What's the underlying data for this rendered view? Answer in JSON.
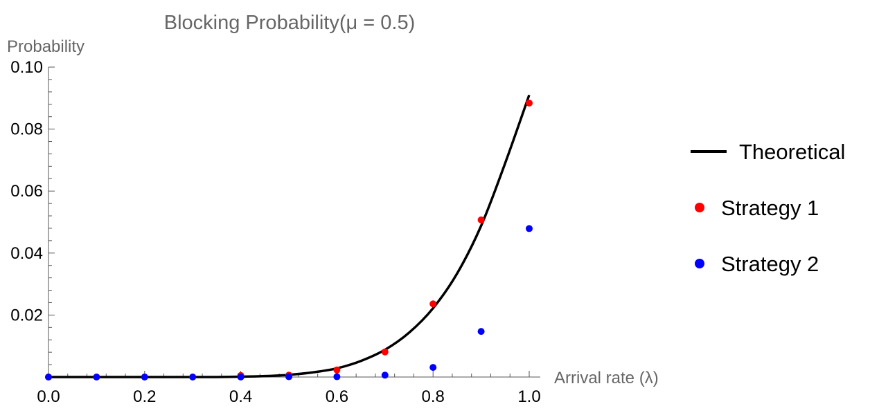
{
  "chart_data": {
    "type": "scatter",
    "title": "Blocking Probability(μ  = 0.5)",
    "xlabel": "Arrival rate (λ)",
    "ylabel": "Probability",
    "xlim": [
      0,
      1.0
    ],
    "ylim": [
      0,
      0.1
    ],
    "x_ticks": [
      "0.0",
      "0.2",
      "0.4",
      "0.6",
      "0.8",
      "1.0"
    ],
    "y_ticks": [
      "0.02",
      "0.04",
      "0.06",
      "0.08",
      "0.10"
    ],
    "legend_position": "right",
    "grid": false,
    "series": [
      {
        "name": "Theoretical",
        "kind": "line",
        "color": "#000000",
        "x": [
          0.0,
          0.05,
          0.1,
          0.15,
          0.2,
          0.25,
          0.3,
          0.35,
          0.4,
          0.45,
          0.5,
          0.55,
          0.6,
          0.65,
          0.7,
          0.75,
          0.8,
          0.85,
          0.9,
          0.95,
          1.0
        ],
        "y": [
          0.0,
          0.0,
          0.0,
          0.0,
          0.0,
          0.0,
          0.0,
          0.0,
          0.0001,
          0.0003,
          0.0007,
          0.0015,
          0.0028,
          0.0052,
          0.0088,
          0.0143,
          0.0222,
          0.0334,
          0.0488,
          0.069,
          0.091
        ]
      },
      {
        "name": "Strategy 1",
        "kind": "points",
        "color": "#ff0000",
        "x": [
          0.0,
          0.1,
          0.2,
          0.3,
          0.4,
          0.5,
          0.6,
          0.7,
          0.8,
          0.9,
          1.0
        ],
        "y": [
          0.0,
          0.0,
          0.0,
          0.0,
          0.0005,
          0.0006,
          0.0023,
          0.0081,
          0.0236,
          0.0507,
          0.0884
        ]
      },
      {
        "name": "Strategy 2",
        "kind": "points",
        "color": "#0000ff",
        "x": [
          0.0,
          0.1,
          0.2,
          0.3,
          0.4,
          0.5,
          0.6,
          0.7,
          0.8,
          0.9,
          1.0
        ],
        "y": [
          0.0,
          0.0,
          0.0,
          0.0,
          0.0,
          0.0001,
          0.0001,
          0.0006,
          0.0031,
          0.0147,
          0.0479
        ]
      }
    ]
  }
}
